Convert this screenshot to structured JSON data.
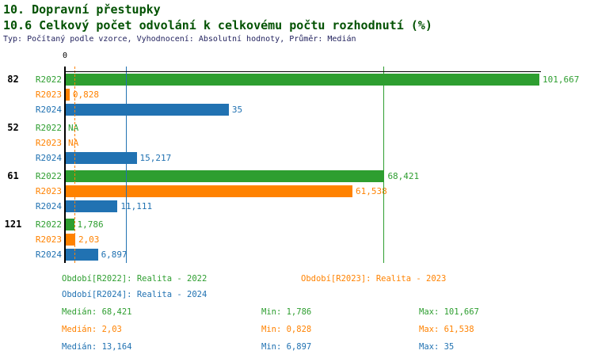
{
  "header": {
    "title_line1": "10. Dopravní přestupky",
    "title_line2": "10.6 Celkový počet odvolání k celkovému počtu rozhodnutí (%)",
    "meta_line": "Typ: Počítaný podle vzorce, Vyhodnocení: Absolutní hodnoty, Průměr: Medián"
  },
  "colors": {
    "title": "#035203",
    "meta": "#23235f",
    "axis": "#000000",
    "series": {
      "R2022": "#2e9e30",
      "R2023": "#ff8200",
      "R2024": "#2172b2"
    }
  },
  "chart_data": {
    "type": "bar",
    "orientation": "horizontal",
    "value_unit": "%",
    "x_axis": {
      "min": 0,
      "max": 101.667,
      "zero_tick_label": "0"
    },
    "series": [
      "R2022",
      "R2023",
      "R2024"
    ],
    "groups": [
      {
        "label": "82",
        "bars": [
          {
            "series": "R2022",
            "value": 101.667,
            "display": "101,667"
          },
          {
            "series": "R2023",
            "value": 0.828,
            "display": "0,828"
          },
          {
            "series": "R2024",
            "value": 35,
            "display": "35"
          }
        ]
      },
      {
        "label": "52",
        "bars": [
          {
            "series": "R2022",
            "value": null,
            "display": "NA"
          },
          {
            "series": "R2023",
            "value": null,
            "display": "NA"
          },
          {
            "series": "R2024",
            "value": 15.217,
            "display": "15,217"
          }
        ]
      },
      {
        "label": "61",
        "bars": [
          {
            "series": "R2022",
            "value": 68.421,
            "display": "68,421"
          },
          {
            "series": "R2023",
            "value": 61.538,
            "display": "61,538"
          },
          {
            "series": "R2024",
            "value": 11.111,
            "display": "11,111"
          }
        ]
      },
      {
        "label": "121",
        "bars": [
          {
            "series": "R2022",
            "value": 1.786,
            "display": "1,786"
          },
          {
            "series": "R2023",
            "value": 2.03,
            "display": "2,03"
          },
          {
            "series": "R2024",
            "value": 6.897,
            "display": "6,897"
          }
        ]
      }
    ],
    "median_lines": [
      {
        "series": "R2022",
        "value": 68.421,
        "style": "solid"
      },
      {
        "series": "R2023",
        "value": 2.03,
        "style": "dashed"
      },
      {
        "series": "R2024",
        "value": 13.164,
        "style": "solid"
      }
    ]
  },
  "legend": [
    {
      "series": "R2022",
      "text": "Období[R2022]: Realita - 2022"
    },
    {
      "series": "R2023",
      "text": "Období[R2023]: Realita - 2023"
    },
    {
      "series": "R2024",
      "text": "Období[R2024]: Realita - 2024"
    }
  ],
  "stats": [
    {
      "series": "R2022",
      "median": "Medián: 68,421",
      "min": "Min: 1,786",
      "max": "Max: 101,667"
    },
    {
      "series": "R2023",
      "median": "Medián: 2,03",
      "min": "Min: 0,828",
      "max": "Max: 61,538"
    },
    {
      "series": "R2024",
      "median": "Medián: 13,164",
      "min": "Min: 6,897",
      "max": "Max: 35"
    }
  ]
}
